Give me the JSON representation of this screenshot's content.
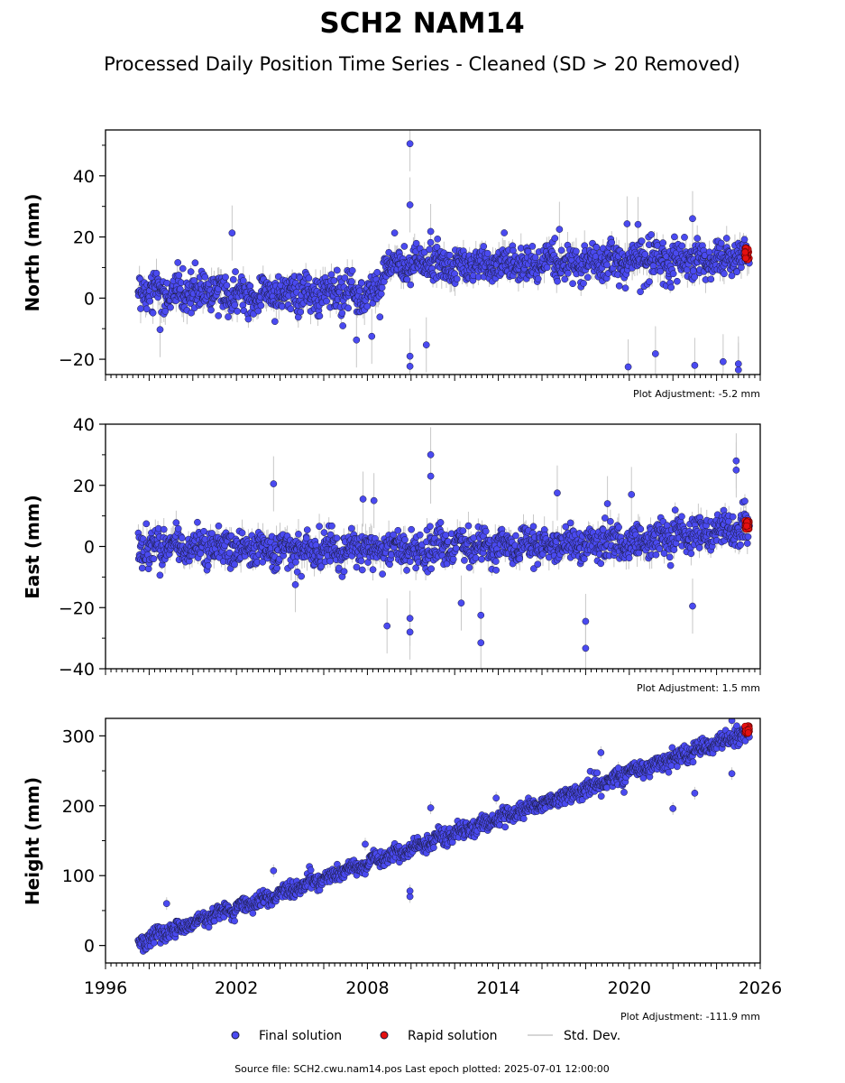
{
  "figure": {
    "title": "SCH2 NAM14",
    "subtitle": "Processed Daily Position Time Series - Cleaned (SD > 20 Removed)",
    "source_note": "Source file: SCH2.cwu.nam14.pos  Last epoch plotted: 2025-07-01 12:00:00"
  },
  "legend": {
    "items": [
      {
        "label": "Final solution",
        "color": "#4a4af0"
      },
      {
        "label": "Rapid solution",
        "color": "#e41010"
      },
      {
        "label": "Std. Dev.",
        "color": "#c8c8c8"
      }
    ]
  },
  "colors": {
    "final": "#4a4af0",
    "rapid": "#e41010",
    "edge": "#1a1a3a",
    "stddev": "#c8c8c8"
  },
  "chart_data": [
    {
      "type": "scatter",
      "ylabel": "North (mm)",
      "adjustment": "Plot Adjustment: -5.2 mm",
      "xlim": [
        1996,
        2026
      ],
      "ylim": [
        -25,
        55
      ],
      "yticks": [
        -20,
        0,
        20,
        40
      ],
      "ytick_labels": [
        "−20",
        "0",
        "20",
        "40"
      ],
      "x_tick_labels_visible": false,
      "trend": {
        "x": [
          1997.5,
          2008.6,
          2008.7,
          2025.5
        ],
        "y": [
          2,
          1,
          10,
          13
        ]
      },
      "noise_sd": 3,
      "outliers": [
        {
          "x": 2009.95,
          "y": 50.5
        },
        {
          "x": 2009.95,
          "y": 30.5
        },
        {
          "x": 2022.9,
          "y": 26
        },
        {
          "x": 2019.9,
          "y": 24.3
        },
        {
          "x": 2020.4,
          "y": 24.1
        },
        {
          "x": 2001.8,
          "y": 21.3
        },
        {
          "x": 2010.9,
          "y": 21.8
        },
        {
          "x": 2016.8,
          "y": 22.5
        },
        {
          "x": 1998.5,
          "y": -10.3
        },
        {
          "x": 2007.5,
          "y": -13.7
        },
        {
          "x": 2008.2,
          "y": -12.5
        },
        {
          "x": 2009.95,
          "y": -19
        },
        {
          "x": 2009.95,
          "y": -22.3
        },
        {
          "x": 2010.7,
          "y": -15.3
        },
        {
          "x": 2019.95,
          "y": -22.5
        },
        {
          "x": 2021.2,
          "y": -18.2
        },
        {
          "x": 2023.0,
          "y": -22
        },
        {
          "x": 2024.3,
          "y": -20.8
        },
        {
          "x": 2025.0,
          "y": -23.5
        },
        {
          "x": 2025.0,
          "y": -21.5
        }
      ],
      "rapid": {
        "x_range": [
          2025.3,
          2025.5
        ],
        "y_range": [
          12.5,
          16.5
        ]
      }
    },
    {
      "type": "scatter",
      "ylabel": "East (mm)",
      "adjustment": "Plot Adjustment: 1.5 mm",
      "xlim": [
        1996,
        2026
      ],
      "ylim": [
        -40,
        40
      ],
      "yticks": [
        -40,
        -20,
        0,
        20,
        40
      ],
      "ytick_labels": [
        "−40",
        "−20",
        "0",
        "20",
        "40"
      ],
      "x_tick_labels_visible": false,
      "trend": {
        "x": [
          1997.5,
          2008.0,
          2019.0,
          2025.5
        ],
        "y": [
          0,
          -1,
          1,
          6
        ]
      },
      "noise_sd": 2.8,
      "outliers": [
        {
          "x": 2010.9,
          "y": 30
        },
        {
          "x": 2024.9,
          "y": 28
        },
        {
          "x": 2024.9,
          "y": 25
        },
        {
          "x": 2010.9,
          "y": 23
        },
        {
          "x": 2003.7,
          "y": 20.5
        },
        {
          "x": 2016.7,
          "y": 17.5
        },
        {
          "x": 2020.1,
          "y": 17
        },
        {
          "x": 2007.8,
          "y": 15.5
        },
        {
          "x": 2008.3,
          "y": 15
        },
        {
          "x": 2019.0,
          "y": 14
        },
        {
          "x": 2008.9,
          "y": -26
        },
        {
          "x": 2009.95,
          "y": -23.5
        },
        {
          "x": 2009.95,
          "y": -28
        },
        {
          "x": 2013.2,
          "y": -22.5
        },
        {
          "x": 2013.2,
          "y": -31.5
        },
        {
          "x": 2018.0,
          "y": -24.5
        },
        {
          "x": 2018.0,
          "y": -33.3
        },
        {
          "x": 2022.9,
          "y": -19.5
        },
        {
          "x": 2012.3,
          "y": -18.5
        },
        {
          "x": 2004.7,
          "y": -12.5
        }
      ],
      "rapid": {
        "x_range": [
          2025.3,
          2025.5
        ],
        "y_range": [
          5.5,
          8.5
        ]
      }
    },
    {
      "type": "scatter",
      "ylabel": "Height (mm)",
      "adjustment": "Plot Adjustment: -111.9 mm",
      "xlim": [
        1996,
        2026
      ],
      "ylim": [
        -25,
        325
      ],
      "yticks": [
        0,
        100,
        200,
        300
      ],
      "ytick_labels": [
        "0",
        "100",
        "200",
        "300"
      ],
      "x_tick_labels_visible": true,
      "xticks": [
        1996,
        2002,
        2008,
        2014,
        2020,
        2026
      ],
      "xtick_labels": [
        "1996",
        "2002",
        "2008",
        "2014",
        "2020",
        "2026"
      ],
      "trend": {
        "x": [
          1997.5,
          2025.5
        ],
        "y": [
          5,
          305
        ]
      },
      "noise_sd": 6,
      "outliers": [
        {
          "x": 1998.8,
          "y": 60
        },
        {
          "x": 2003.7,
          "y": 107
        },
        {
          "x": 2007.9,
          "y": 145
        },
        {
          "x": 2009.95,
          "y": 70
        },
        {
          "x": 2009.95,
          "y": 78
        },
        {
          "x": 2010.9,
          "y": 197
        },
        {
          "x": 2013.9,
          "y": 211
        },
        {
          "x": 2018.7,
          "y": 276
        },
        {
          "x": 2019.5,
          "y": 254
        },
        {
          "x": 2024.7,
          "y": 246
        },
        {
          "x": 2024.7,
          "y": 322
        },
        {
          "x": 2022.0,
          "y": 196
        },
        {
          "x": 2023.0,
          "y": 218
        }
      ],
      "rapid": {
        "x_range": [
          2025.3,
          2025.5
        ],
        "y_range": [
          303,
          315
        ]
      }
    }
  ]
}
